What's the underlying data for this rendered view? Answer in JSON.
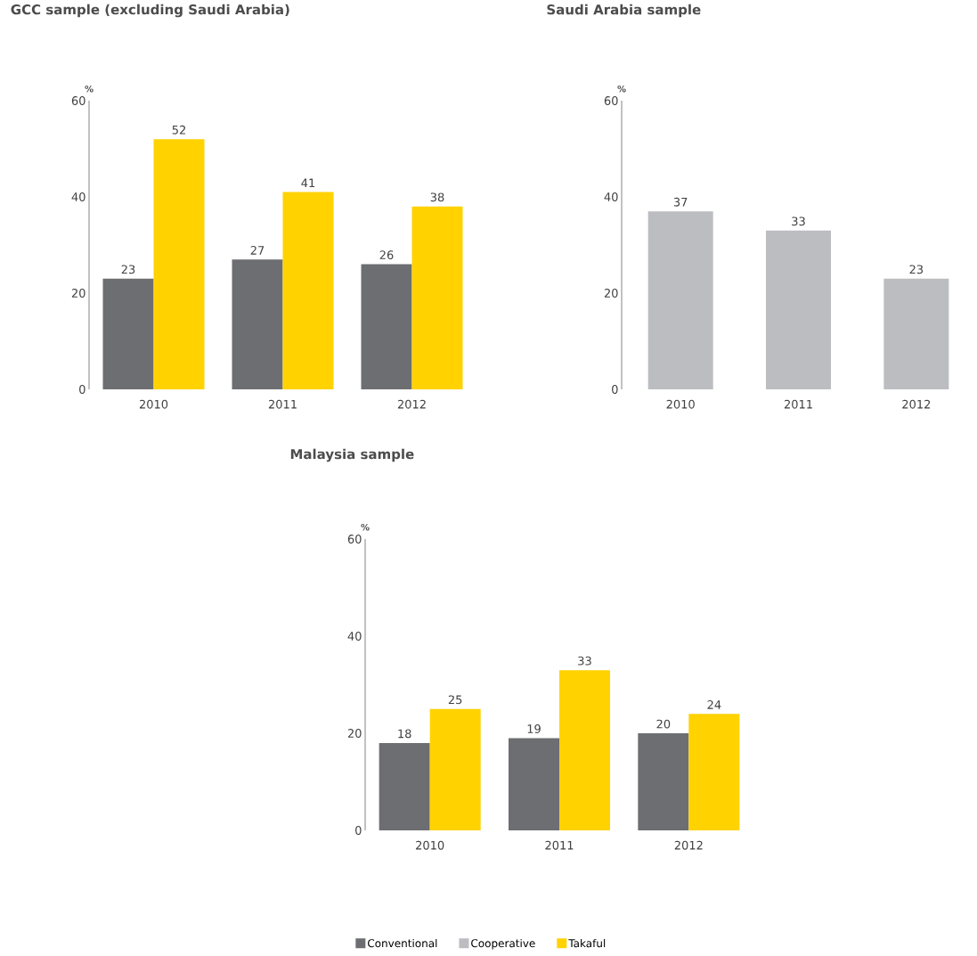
{
  "chart_data": [
    {
      "type": "bar",
      "title": "GCC sample (excluding Saudi Arabia)",
      "ylabel": "%",
      "categories": [
        "2010",
        "2011",
        "2012"
      ],
      "series": [
        {
          "color": "#6d6e71",
          "values": [
            23,
            27,
            26
          ]
        },
        {
          "color": "#ffd200",
          "values": [
            52,
            41,
            38
          ]
        }
      ],
      "ylim": [
        0,
        60
      ],
      "yticks": [
        0,
        20,
        40,
        60
      ],
      "data_labels": true
    },
    {
      "type": "bar",
      "title": "Saudi Arabia sample",
      "ylabel": "%",
      "categories": [
        "2010",
        "2011",
        "2012"
      ],
      "series": [
        {
          "color": "#bcbdc0",
          "values": [
            37,
            33,
            23
          ]
        }
      ],
      "ylim": [
        0,
        60
      ],
      "yticks": [
        0,
        20,
        40,
        60
      ],
      "data_labels": true
    },
    {
      "type": "bar",
      "title": "Malaysia sample",
      "ylabel": "%",
      "categories": [
        "2010",
        "2011",
        "2012"
      ],
      "series": [
        {
          "name": "Conventional",
          "color": "#6d6e71",
          "values": [
            18,
            19,
            20
          ]
        },
        {
          "name": "Cooperative",
          "color": "#bcbdc0",
          "values": [
            null,
            null,
            null
          ]
        },
        {
          "name": "Takaful",
          "color": "#ffd200",
          "values": [
            25,
            33,
            24
          ]
        }
      ],
      "ylim": [
        0,
        60
      ],
      "yticks": [
        0,
        20,
        40,
        60
      ],
      "data_labels": true,
      "legend": "bottom"
    }
  ]
}
